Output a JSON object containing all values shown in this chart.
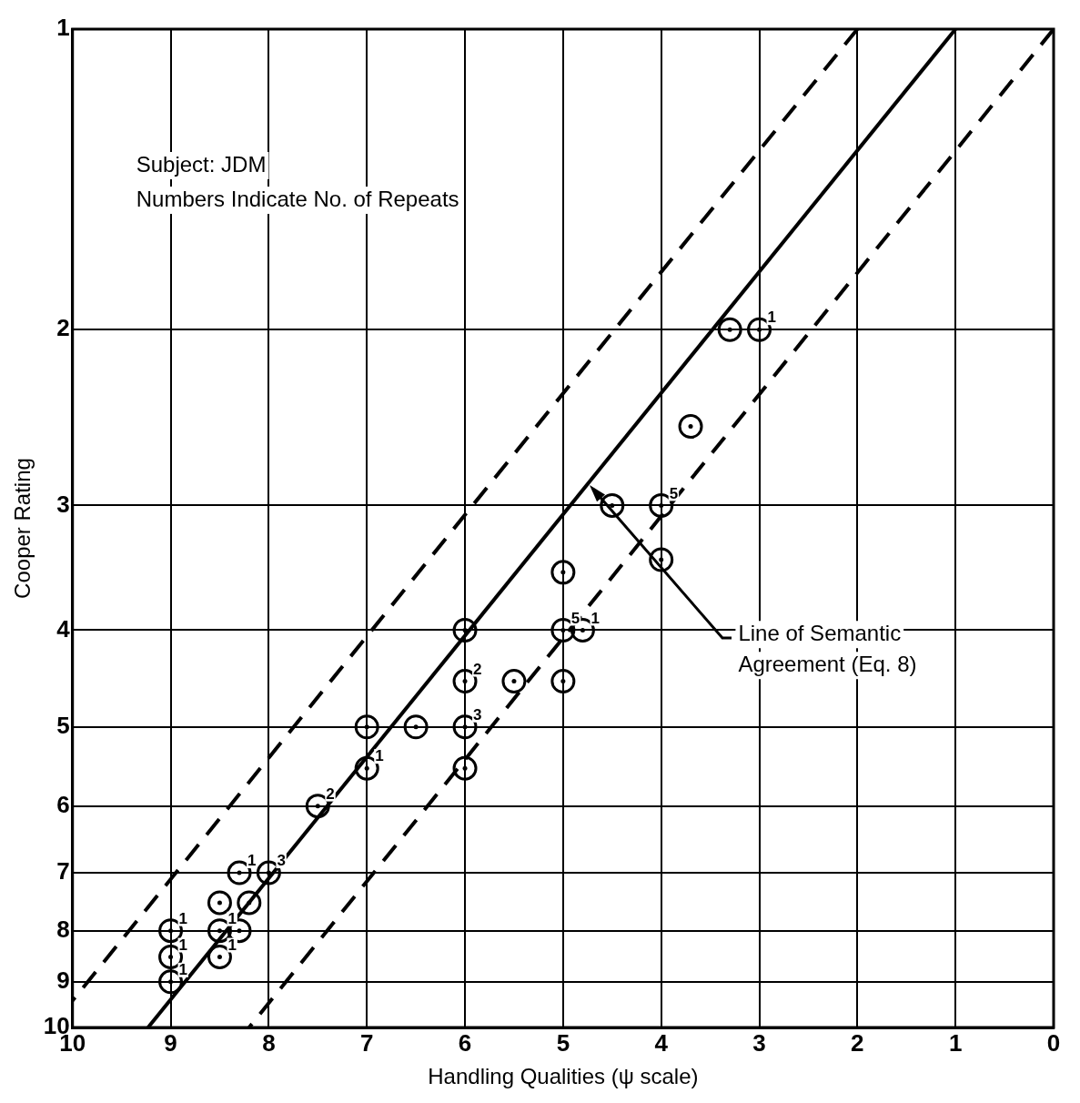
{
  "chart_data": {
    "type": "scatter",
    "xlabel": "Handling Qualities (ψ scale)",
    "ylabel": "Cooper Rating",
    "xlim": [
      10,
      0
    ],
    "xticks": [
      10,
      9,
      8,
      7,
      6,
      5,
      4,
      3,
      2,
      1,
      0
    ],
    "ylim": [
      10,
      1
    ],
    "yticks": [
      1,
      2,
      3,
      4,
      5,
      6,
      7,
      8,
      9,
      10
    ],
    "log": "y",
    "grid": true,
    "legend": false,
    "annotations": [
      "Subject: JDM",
      "Numbers Indicate No. of Repeats",
      "Line of Semantic\nAgreement (Eq. 8)",
      {
        "text": "1",
        "x": 3,
        "y": 2
      },
      {
        "text": "5",
        "x": 4,
        "y": 3
      },
      {
        "text": "5",
        "x": 5,
        "y": 4
      },
      {
        "text": "1",
        "x": 4.8,
        "y": 4
      },
      {
        "text": "2",
        "x": 6,
        "y": 4.5
      },
      {
        "text": "3",
        "x": 6,
        "y": 5
      },
      {
        "text": "1",
        "x": 7,
        "y": 5.5
      },
      {
        "text": "2",
        "x": 7.5,
        "y": 6
      },
      {
        "text": "1",
        "x": 8.3,
        "y": 7
      },
      {
        "text": "3",
        "x": 8,
        "y": 7
      },
      {
        "text": "1",
        "x": 9,
        "y": 8
      },
      {
        "text": "1",
        "x": 8.5,
        "y": 8
      },
      {
        "text": "1",
        "x": 9,
        "y": 8.5
      },
      {
        "text": "1",
        "x": 8.5,
        "y": 8.5
      },
      {
        "text": "1",
        "x": 9,
        "y": 9
      }
    ],
    "series": [
      {
        "type": "scatter",
        "color": "#000000",
        "marker": "circle",
        "x": [
          3.3,
          3,
          3.7,
          4.5,
          4,
          4,
          5,
          6,
          5,
          4.8,
          6,
          5.5,
          5,
          7,
          6.5,
          6,
          7,
          6,
          7.5,
          8.3,
          8,
          8.5,
          8.2,
          9,
          8.5,
          8.3,
          9,
          8.5,
          9
        ],
        "values": [
          2,
          2,
          2.5,
          3,
          3,
          3.4,
          3.5,
          4,
          4,
          4,
          4.5,
          4.5,
          4.5,
          5,
          5,
          5,
          5.5,
          5.5,
          6,
          7,
          7,
          7.5,
          7.5,
          8,
          8,
          8,
          8.5,
          8.5,
          9
        ]
      },
      {
        "type": "line",
        "color": "#000000",
        "marker": "none",
        "line_style": "solid",
        "x": [
          1,
          9.23
        ],
        "values": [
          1,
          10
        ]
      },
      {
        "type": "line",
        "color": "#000000",
        "marker": "none",
        "line_style": "dashed",
        "x": [
          2,
          10
        ],
        "values": [
          1,
          9.4
        ]
      },
      {
        "type": "line",
        "color": "#000000",
        "marker": "none",
        "line_style": "dashed",
        "x": [
          0,
          8.2
        ],
        "values": [
          1,
          10
        ]
      }
    ]
  }
}
